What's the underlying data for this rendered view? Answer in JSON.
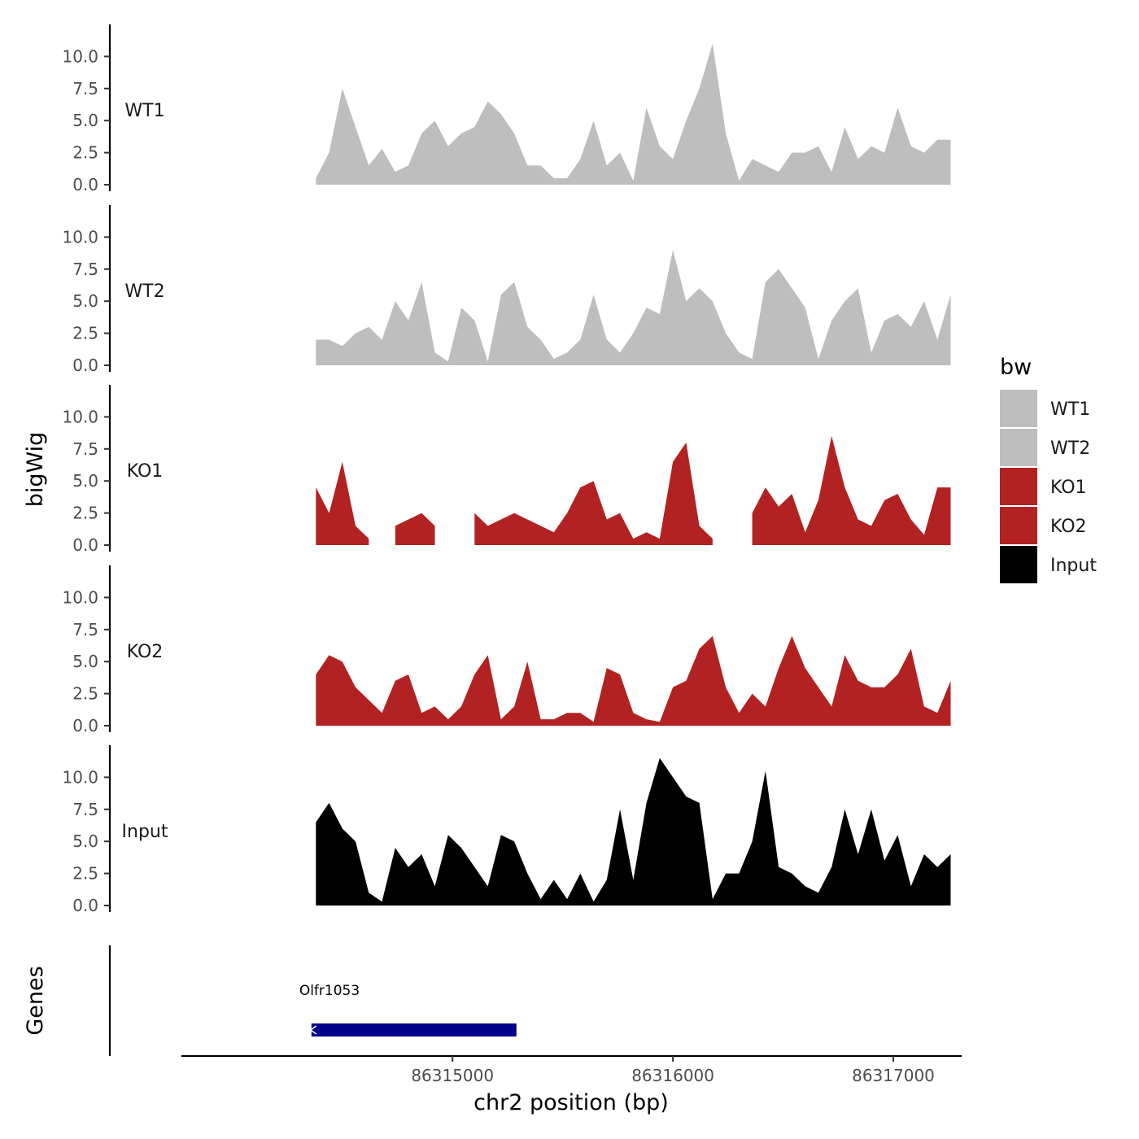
{
  "chart_data": {
    "type": "area",
    "x": [
      86314380,
      86314440,
      86314500,
      86314560,
      86314620,
      86314680,
      86314740,
      86314800,
      86314860,
      86314920,
      86314980,
      86315040,
      86315100,
      86315160,
      86315220,
      86315280,
      86315340,
      86315400,
      86315460,
      86315520,
      86315580,
      86315640,
      86315700,
      86315760,
      86315820,
      86315880,
      86315940,
      86316000,
      86316060,
      86316120,
      86316180,
      86316240,
      86316300,
      86316360,
      86316420,
      86316480,
      86316540,
      86316600,
      86316660,
      86316720,
      86316780,
      86316840,
      86316900,
      86316960,
      86317020,
      86317080,
      86317140,
      86317200,
      86317260
    ],
    "series": [
      {
        "name": "WT1",
        "values": [
          0.5,
          2.5,
          7.5,
          4.5,
          1.5,
          2.8,
          1.0,
          1.5,
          4.0,
          5.0,
          3.0,
          4.0,
          4.5,
          6.5,
          5.5,
          4.0,
          1.5,
          1.5,
          0.5,
          0.5,
          2.0,
          5.0,
          1.5,
          2.5,
          0.3,
          6.0,
          3.0,
          2.0,
          5.0,
          7.5,
          11.0,
          4.0,
          0.3,
          2.0,
          1.5,
          1.0,
          2.5,
          2.5,
          3.0,
          1.0,
          4.5,
          2.0,
          3.0,
          2.5,
          6.0,
          3.0,
          2.5,
          3.5,
          3.5
        ]
      },
      {
        "name": "WT2",
        "values": [
          2.0,
          2.0,
          1.5,
          2.5,
          3.0,
          2.0,
          5.0,
          3.5,
          6.5,
          1.0,
          0.3,
          4.5,
          3.5,
          0.3,
          5.5,
          6.5,
          3.0,
          2.0,
          0.5,
          1.0,
          2.0,
          5.5,
          2.0,
          1.0,
          2.5,
          4.5,
          4.0,
          9.0,
          5.0,
          6.0,
          5.0,
          2.5,
          1.0,
          0.5,
          6.5,
          7.5,
          6.0,
          4.5,
          0.5,
          3.5,
          5.0,
          6.0,
          1.0,
          3.5,
          4.0,
          3.0,
          5.0,
          2.0,
          5.5
        ]
      },
      {
        "name": "KO1",
        "values": [
          4.5,
          2.5,
          6.5,
          1.5,
          0.5,
          null,
          1.5,
          2.0,
          2.5,
          1.5,
          null,
          null,
          2.5,
          1.5,
          2.0,
          2.5,
          2.0,
          1.5,
          1.0,
          2.5,
          4.5,
          5.0,
          2.0,
          2.5,
          0.5,
          1.0,
          0.5,
          6.5,
          8.0,
          1.5,
          0.5,
          null,
          null,
          2.5,
          4.5,
          3.0,
          4.0,
          1.0,
          3.5,
          8.5,
          4.5,
          2.0,
          1.5,
          3.5,
          4.0,
          2.0,
          0.8,
          4.5,
          4.5
        ]
      },
      {
        "name": "KO2",
        "values": [
          4.0,
          5.5,
          5.0,
          3.0,
          2.0,
          1.0,
          3.5,
          4.0,
          1.0,
          1.5,
          0.5,
          1.5,
          4.0,
          5.5,
          0.5,
          1.5,
          5.0,
          0.5,
          0.5,
          1.0,
          1.0,
          0.3,
          4.5,
          4.0,
          1.0,
          0.5,
          0.3,
          3.0,
          3.5,
          6.0,
          7.0,
          3.0,
          1.0,
          2.5,
          1.5,
          4.5,
          7.0,
          4.5,
          3.0,
          1.5,
          5.5,
          3.5,
          3.0,
          3.0,
          4.0,
          6.0,
          1.5,
          1.0,
          3.5
        ]
      },
      {
        "name": "Input",
        "values": [
          6.5,
          8.0,
          6.0,
          5.0,
          1.0,
          0.3,
          4.5,
          3.0,
          4.0,
          1.5,
          5.5,
          4.5,
          3.0,
          1.5,
          5.5,
          5.0,
          2.5,
          0.5,
          2.0,
          0.5,
          2.5,
          0.3,
          2.0,
          7.5,
          2.0,
          8.0,
          11.5,
          10.0,
          8.5,
          8.0,
          0.5,
          2.5,
          2.5,
          5.0,
          10.5,
          3.0,
          2.5,
          1.5,
          1.0,
          3.0,
          7.5,
          4.0,
          7.5,
          3.5,
          5.5,
          1.5,
          4.0,
          3.0,
          4.0
        ]
      }
    ],
    "colors": {
      "WT1": "#bebebe",
      "WT2": "#bebebe",
      "KO1": "#b22222",
      "KO2": "#b22222",
      "Input": "#000000"
    },
    "ylim": [
      0,
      12.5
    ],
    "yticks": [
      "0.0",
      "2.5",
      "5.0",
      "7.5",
      "10.0"
    ],
    "xlim": [
      86313770,
      86317310
    ],
    "xticks": [
      {
        "value": 86315000,
        "label": "86315000"
      },
      {
        "value": 86316000,
        "label": "86316000"
      },
      {
        "value": 86317000,
        "label": "86317000"
      }
    ],
    "xlabel": "chr2 position (bp)",
    "ylabel": "bigWig",
    "genes_label": "Genes",
    "gene": {
      "name": "Olfr1053",
      "start": 86314360,
      "end": 86315290,
      "color": "#00008b"
    },
    "legend": {
      "title": "bw",
      "position": "right",
      "entries": [
        "WT1",
        "WT2",
        "KO1",
        "KO2",
        "Input"
      ]
    }
  }
}
